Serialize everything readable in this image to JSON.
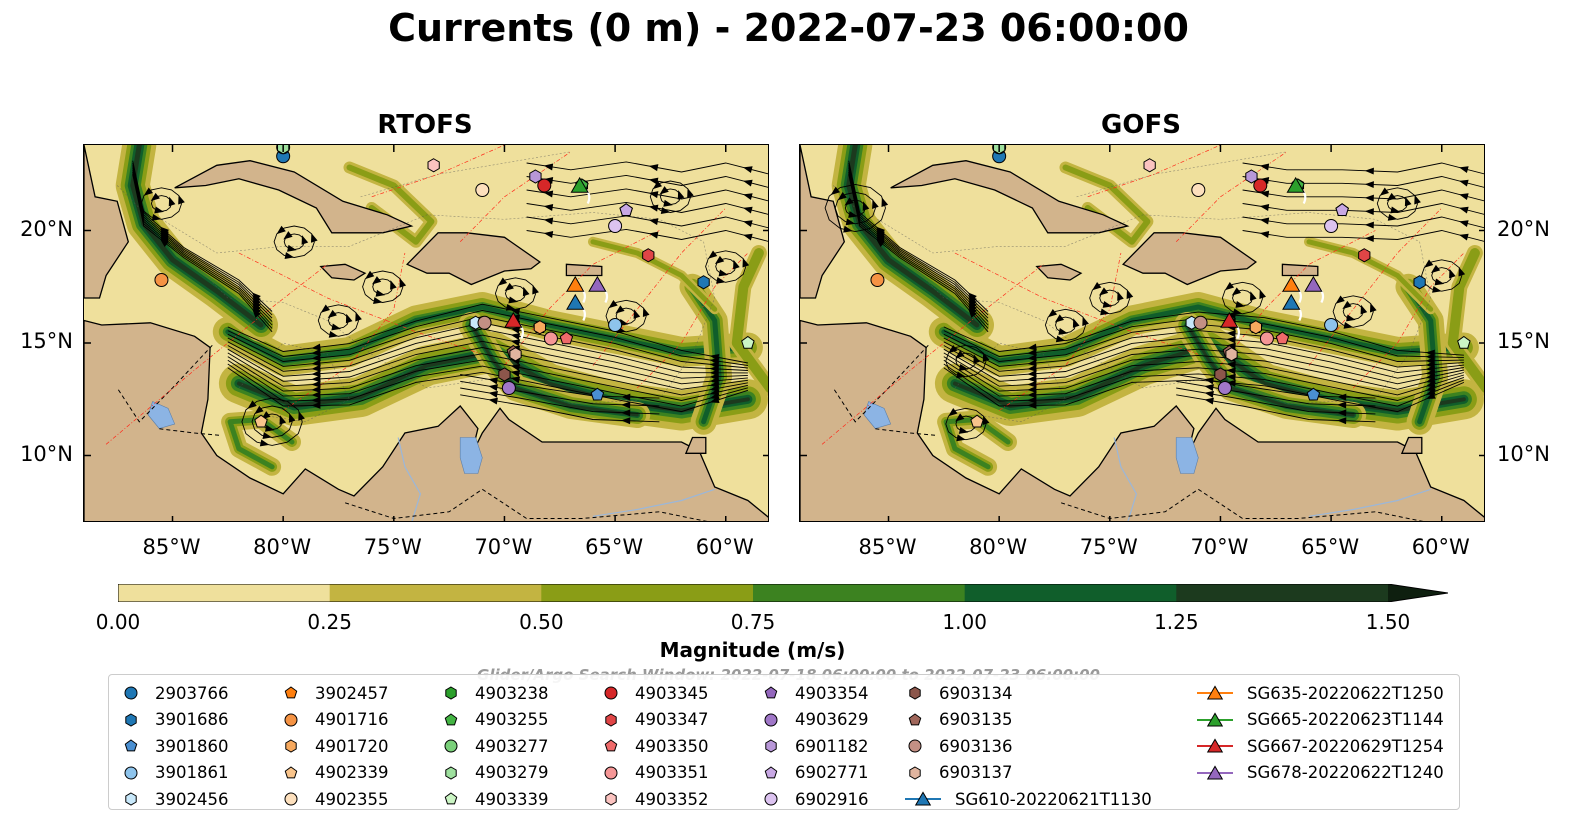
{
  "title": "Currents (0 m) - 2022-07-23 06:00:00",
  "panels": [
    {
      "title": "RTOFS"
    },
    {
      "title": "GOFS"
    }
  ],
  "chart_data": {
    "type": "heatmap",
    "title": "Currents (0 m) - 2022-07-23 06:00:00",
    "xlabel": "",
    "ylabel": "",
    "x_ticks": [
      "85°W",
      "80°W",
      "75°W",
      "70°W",
      "65°W",
      "60°W"
    ],
    "y_ticks": [
      "20°N",
      "15°N",
      "10°N"
    ],
    "x_range_deg": [
      -89,
      -58
    ],
    "y_range_deg": [
      7,
      23.8
    ],
    "colorbar": {
      "label": "Magnitude (m/s)",
      "ticks": [
        "0.00",
        "0.25",
        "0.50",
        "0.75",
        "1.00",
        "1.25",
        "1.50"
      ],
      "bounds": [
        0,
        0.25,
        0.5,
        0.75,
        1.0,
        1.25,
        1.5
      ],
      "colors": [
        "#efe09c",
        "#c3b441",
        "#8a9d16",
        "#3c8220",
        "#105e2b",
        "#1c3a1e"
      ],
      "extend": "max"
    },
    "search_window": "Glider/Argo Search Window: 2022-07-18 06:00:00 to 2022-07-23 06:00:00",
    "argo_floats": [
      {
        "id": "2903766",
        "lon": -80.0,
        "lat": 23.3,
        "color": "#1f77b4",
        "marker": "circle"
      },
      {
        "id": "3901686",
        "lon": -61.0,
        "lat": 17.7,
        "color": "#1f77b4",
        "marker": "hexagon"
      },
      {
        "id": "3901860",
        "lon": -65.8,
        "lat": 12.7,
        "color": "#4a8fd1",
        "marker": "pentagon"
      },
      {
        "id": "3901861",
        "lon": -65.0,
        "lat": 15.8,
        "color": "#8ec4ec",
        "marker": "circle"
      },
      {
        "id": "3902456",
        "lon": -71.3,
        "lat": 15.9,
        "color": "#c8e8fa",
        "marker": "hexagon"
      },
      {
        "id": "3902457",
        "lon": -68.4,
        "lat": 15.7,
        "color": "#ff7f0e",
        "marker": "pentagon"
      },
      {
        "id": "4901716",
        "lon": -85.5,
        "lat": 17.8,
        "color": "#f59344",
        "marker": "circle"
      },
      {
        "id": "4901720",
        "lon": -68.4,
        "lat": 15.7,
        "color": "#f7a95e",
        "marker": "hexagon"
      },
      {
        "id": "4902339",
        "lon": -81.0,
        "lat": 11.5,
        "color": "#f9c48b",
        "marker": "pentagon"
      },
      {
        "id": "4902355",
        "lon": -71.0,
        "lat": 21.8,
        "color": "#fde0bd",
        "marker": "circle"
      },
      {
        "id": "4903238",
        "lon": -66.5,
        "lat": 22.0,
        "color": "#2ca02c",
        "marker": "hexagon"
      },
      {
        "id": "4903255",
        "lon": -66.5,
        "lat": 22.0,
        "color": "#43b443",
        "marker": "pentagon"
      },
      {
        "id": "4903277",
        "lon": -80.0,
        "lat": 23.7,
        "color": "#7ad07a",
        "marker": "circle"
      },
      {
        "id": "4903279",
        "lon": -80.0,
        "lat": 23.7,
        "color": "#9ee09e",
        "marker": "hexagon"
      },
      {
        "id": "4903339",
        "lon": -59.0,
        "lat": 15.0,
        "color": "#cbf5c4",
        "marker": "pentagon"
      },
      {
        "id": "4903345",
        "lon": -68.2,
        "lat": 22.0,
        "color": "#d62728",
        "marker": "circle"
      },
      {
        "id": "4903347",
        "lon": -63.5,
        "lat": 18.9,
        "color": "#e04546",
        "marker": "hexagon"
      },
      {
        "id": "4903350",
        "lon": -67.2,
        "lat": 15.2,
        "color": "#ef6a6a",
        "marker": "pentagon"
      },
      {
        "id": "4903351",
        "lon": -67.9,
        "lat": 15.2,
        "color": "#f59696",
        "marker": "circle"
      },
      {
        "id": "4903352",
        "lon": -73.2,
        "lat": 22.9,
        "color": "#fbc3c0",
        "marker": "hexagon"
      },
      {
        "id": "4903354",
        "lon": -64.5,
        "lat": 20.9,
        "color": "#9467bd",
        "marker": "pentagon"
      },
      {
        "id": "4903629",
        "lon": -69.8,
        "lat": 13.0,
        "color": "#a077c8",
        "marker": "circle"
      },
      {
        "id": "6901182",
        "lon": -68.6,
        "lat": 22.4,
        "color": "#b897d8",
        "marker": "hexagon"
      },
      {
        "id": "6902771",
        "lon": -64.5,
        "lat": 20.9,
        "color": "#c8a8e4",
        "marker": "pentagon"
      },
      {
        "id": "6902916",
        "lon": -65.0,
        "lat": 20.2,
        "color": "#dcc3f0",
        "marker": "circle"
      },
      {
        "id": "6903134",
        "lon": -70.0,
        "lat": 13.6,
        "color": "#8c564b",
        "marker": "hexagon"
      },
      {
        "id": "6903135",
        "lon": -69.6,
        "lat": 14.6,
        "color": "#a0665a",
        "marker": "pentagon"
      },
      {
        "id": "6903136",
        "lon": -70.9,
        "lat": 15.9,
        "color": "#c49084",
        "marker": "circle"
      },
      {
        "id": "6903137",
        "lon": -69.5,
        "lat": 14.5,
        "color": "#e0b49f",
        "marker": "hexagon"
      }
    ],
    "gliders": [
      {
        "id": "SG610-20220621T1130",
        "lon": -66.8,
        "lat": 16.8,
        "color": "#1f77b4"
      },
      {
        "id": "SG635-20220622T1250",
        "lon": -66.8,
        "lat": 17.6,
        "color": "#ff7f0e"
      },
      {
        "id": "SG665-20220623T1144",
        "lon": -66.6,
        "lat": 22.0,
        "color": "#2ca02c"
      },
      {
        "id": "SG667-20220629T1254",
        "lon": -69.6,
        "lat": 16.0,
        "color": "#d62728"
      },
      {
        "id": "SG678-20220622T1240",
        "lon": -65.8,
        "lat": 17.6,
        "color": "#9467bd"
      }
    ]
  },
  "legend_columns": [
    [
      0,
      1,
      2,
      3,
      4
    ],
    [
      5,
      6,
      7,
      8,
      9
    ],
    [
      10,
      11,
      12,
      13,
      14
    ],
    [
      15,
      16,
      17,
      18,
      19
    ],
    [
      20,
      21,
      22,
      23,
      24
    ],
    [
      25,
      26,
      27,
      28
    ],
    []
  ]
}
